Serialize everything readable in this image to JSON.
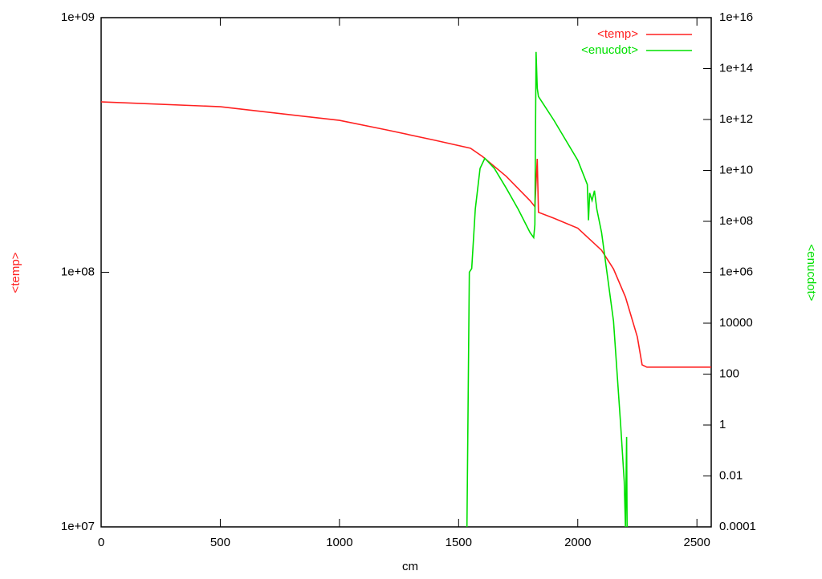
{
  "chart_data": {
    "type": "line",
    "x_label": "cm",
    "y_label": "<temp>",
    "y2_label": "<enucdot>",
    "xlim": [
      0,
      2560
    ],
    "xticks": [
      0,
      500,
      1000,
      1500,
      2000,
      2500
    ],
    "ylim": [
      10000000,
      1000000000
    ],
    "yticks": [
      {
        "value": 10000000,
        "label": "1e+07"
      },
      {
        "value": 100000000,
        "label": "1e+08"
      },
      {
        "value": 1000000000,
        "label": "1e+09"
      }
    ],
    "y2lim": [
      0.0001,
      10000000000000000
    ],
    "y2ticks": [
      0.0001,
      0.01,
      1,
      100,
      10000,
      {
        "value": 1000000,
        "label": "1e+06"
      },
      {
        "value": 100000000,
        "label": "1e+08"
      },
      {
        "value": 10000000000,
        "label": "1e+10"
      },
      {
        "value": 1000000000000,
        "label": "1e+12"
      },
      {
        "value": 100000000000000,
        "label": "1e+14"
      },
      {
        "value": 10000000000000000,
        "label": "1e+16"
      }
    ],
    "log_y": true,
    "log_y2": true,
    "legend": "top right",
    "series": [
      {
        "name": "<temp>",
        "color": "#ff2020",
        "x": [
          0,
          500,
          1000,
          1200,
          1400,
          1550,
          1600,
          1700,
          1800,
          1820,
          1830,
          1835,
          1900,
          2000,
          2100,
          2150,
          2200,
          2250,
          2270,
          2290,
          2560
        ],
        "values": [
          467000000,
          447000000,
          395000000,
          362000000,
          330000000,
          307000000,
          285000000,
          238000000,
          191000000,
          181000000,
          279000000,
          172000000,
          163000000,
          149000000,
          122000000,
          103000000,
          80000000,
          55700000,
          43300000,
          42400000,
          42400000
        ]
      },
      {
        "name": "<enucdot>",
        "color": "#00e000",
        "axis": "y2",
        "x": [
          1535,
          1545,
          1555,
          1570,
          1590,
          1610,
          1650,
          1700,
          1750,
          1800,
          1815,
          1820,
          1825,
          1830,
          1835,
          1900,
          2000,
          2040,
          2045,
          2050,
          2060,
          2070,
          2080,
          2100,
          2150,
          2180,
          2195,
          2200,
          2205,
          2207
        ],
        "values": [
          0.0001,
          1000000,
          1400000,
          300000000,
          12000000000,
          30000000000,
          12000000000,
          2000000000,
          300000000,
          36000000,
          23000000,
          74000000,
          450000000000000,
          17000000000000,
          8000000000000,
          930000000000,
          25000000000,
          2800000000,
          110000000,
          1300000000,
          660000000,
          1600000000,
          300000000,
          36000000,
          12000,
          1,
          0.006,
          0.0001,
          0.34,
          0.0001
        ]
      }
    ]
  }
}
